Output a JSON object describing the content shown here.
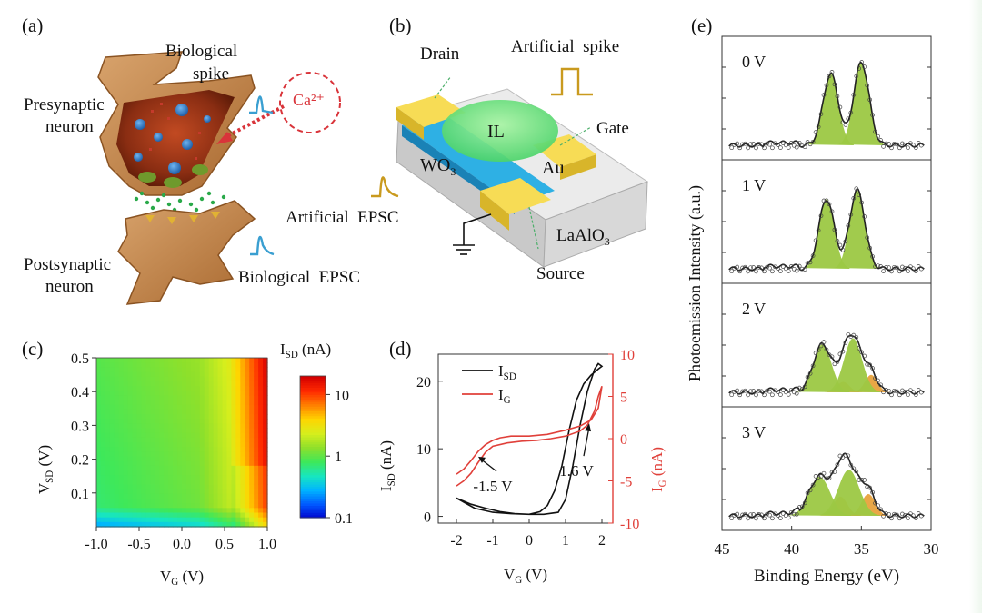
{
  "panels": {
    "a": "(a)",
    "b": "(b)",
    "c": "(c)",
    "d": "(d)",
    "e": "(e)"
  },
  "panel_a": {
    "bio_spike_1": "Biological",
    "bio_spike_2": "spike",
    "pre_1": "Presynaptic",
    "pre_2": "neuron",
    "ion": "Ca²⁺",
    "post_1": "Postsynaptic",
    "post_2": "neuron",
    "bio_epsc": "Biological  EPSC"
  },
  "panel_b": {
    "drain": "Drain",
    "art_spike": "Artificial  spike",
    "il": "IL",
    "gate": "Gate",
    "wo3": "WO",
    "wo3_sub": "3",
    "au": "Au",
    "art_epsc": "Artificial  EPSC",
    "lao": "LaAlO",
    "lao_sub": "3",
    "source": "Source"
  },
  "colors": {
    "spike_blue": "#3a9fd1",
    "spike_gold": "#c99a1e",
    "red_axis": "#e0403a",
    "green_peak": "#9cc843",
    "orange_peak": "#e8a23c",
    "gold_electrode": "#f4cf3a"
  },
  "chart_data": [
    {
      "type": "heatmap",
      "panel": "c",
      "title": "",
      "xlabel": "V",
      "xlabel_sub": "G",
      "xlabel_unit": " (V)",
      "ylabel": "V",
      "ylabel_sub": "SD",
      "ylabel_unit": " (V)",
      "xlim": [
        -1.0,
        1.0
      ],
      "ylim": [
        0,
        0.5
      ],
      "x_ticks": [
        "-1.0",
        "-0.5",
        "0.0",
        "0.5",
        "1.0"
      ],
      "y_ticks": [
        "0.5",
        "0.4",
        "0.3",
        "0.2",
        "0.1"
      ],
      "colorbar_title": "I",
      "colorbar_title_sub": "SD",
      "colorbar_title_unit": " (nA)",
      "colorbar_ticks": [
        "10",
        "1",
        "0.1"
      ],
      "colorbar_range": [
        0.1,
        20
      ]
    },
    {
      "type": "line",
      "panel": "d",
      "xlabel": "V",
      "xlabel_sub": "G",
      "xlabel_unit": " (V)",
      "ylabel": "I",
      "ylabel_sub": "SD",
      "ylabel_unit": " (nA)",
      "y2label": "I",
      "y2label_sub": "G",
      "y2label_unit": " (nA)",
      "xlim": [
        -2.5,
        2.3
      ],
      "ylim": [
        -1,
        24
      ],
      "y2lim": [
        -10,
        10
      ],
      "x_ticks": [
        "-2",
        "-1",
        "0",
        "1",
        "2"
      ],
      "y_ticks": [
        "20",
        "10",
        "0"
      ],
      "y2_ticks": [
        "10",
        "5",
        "0",
        "-5",
        "-10"
      ],
      "series": [
        {
          "name": "I",
          "name_sub": "SD",
          "axis": "left",
          "color": "#111111",
          "x": [
            -2.0,
            -1.6,
            -1.2,
            -0.8,
            -0.4,
            0.0,
            0.4,
            0.8,
            1.0,
            1.2,
            1.4,
            1.6,
            1.8,
            1.9,
            2.0,
            1.9,
            1.7,
            1.5,
            1.3,
            1.1,
            0.9,
            0.7,
            0.5,
            0.3,
            0.0,
            -0.5,
            -1.0,
            -1.5,
            -2.0
          ],
          "y": [
            2.7,
            1.8,
            1.2,
            0.7,
            0.4,
            0.3,
            0.3,
            0.6,
            2.5,
            7.5,
            13.5,
            18.5,
            21.8,
            22.6,
            22.2,
            21.8,
            20.9,
            19.6,
            17.2,
            12.8,
            7.5,
            3.8,
            1.6,
            0.7,
            0.3,
            0.4,
            0.6,
            1.2,
            2.7
          ]
        },
        {
          "name": "I",
          "name_sub": "G",
          "axis": "right",
          "color": "#e0403a",
          "x": [
            -2.0,
            -1.8,
            -1.6,
            -1.4,
            -1.2,
            -1.0,
            -0.6,
            -0.2,
            0.2,
            0.6,
            1.0,
            1.4,
            1.6,
            1.8,
            1.9,
            2.0,
            1.9,
            1.7,
            1.4,
            1.0,
            0.5,
            0.0,
            -0.5,
            -0.8,
            -1.0,
            -1.2,
            -1.4,
            -1.6,
            -1.8,
            -2.0
          ],
          "y": [
            -5.6,
            -5.0,
            -4.1,
            -2.8,
            -1.6,
            -0.9,
            -0.5,
            -0.3,
            -0.2,
            0.0,
            0.3,
            0.9,
            1.6,
            3.3,
            5.0,
            6.2,
            3.6,
            2.2,
            1.5,
            1.0,
            0.5,
            0.3,
            0.3,
            0.1,
            -0.2,
            -0.7,
            -1.5,
            -2.6,
            -3.6,
            -4.2
          ]
        }
      ],
      "annotations": [
        {
          "text": "-1.5 V",
          "x": -1.5,
          "y": -3.0,
          "axis": "right"
        },
        {
          "text": "1.6 V",
          "x": 1.6,
          "y": 1.6,
          "axis": "right"
        }
      ]
    },
    {
      "type": "line",
      "panel": "e",
      "xlabel": "Binding Energy (eV)",
      "ylabel": "Photoemission Intensity (a.u.)",
      "xlim": [
        45,
        30
      ],
      "x_ticks": [
        "45",
        "40",
        "35",
        "30"
      ],
      "subplots": [
        {
          "label": "0 V",
          "green": [
            {
              "center": 37.2,
              "width": 0.55,
              "amp": 0.82
            },
            {
              "center": 35.0,
              "width": 0.55,
              "amp": 0.95
            }
          ],
          "orange": []
        },
        {
          "label": "1 V",
          "green": [
            {
              "center": 37.5,
              "width": 0.55,
              "amp": 0.8
            },
            {
              "center": 35.3,
              "width": 0.55,
              "amp": 0.9
            }
          ],
          "orange": []
        },
        {
          "label": "2 V",
          "green": [
            {
              "center": 37.8,
              "width": 0.65,
              "amp": 0.55
            },
            {
              "center": 35.6,
              "width": 0.65,
              "amp": 0.62
            }
          ],
          "orange": [
            {
              "center": 36.3,
              "width": 0.45,
              "amp": 0.12
            },
            {
              "center": 34.3,
              "width": 0.45,
              "amp": 0.2
            }
          ]
        },
        {
          "label": "3 V",
          "green": [
            {
              "center": 38.0,
              "width": 0.75,
              "amp": 0.45
            },
            {
              "center": 35.9,
              "width": 0.75,
              "amp": 0.53
            }
          ],
          "orange": [
            {
              "center": 36.5,
              "width": 0.5,
              "amp": 0.22
            },
            {
              "center": 34.5,
              "width": 0.5,
              "amp": 0.25
            }
          ]
        }
      ]
    }
  ]
}
